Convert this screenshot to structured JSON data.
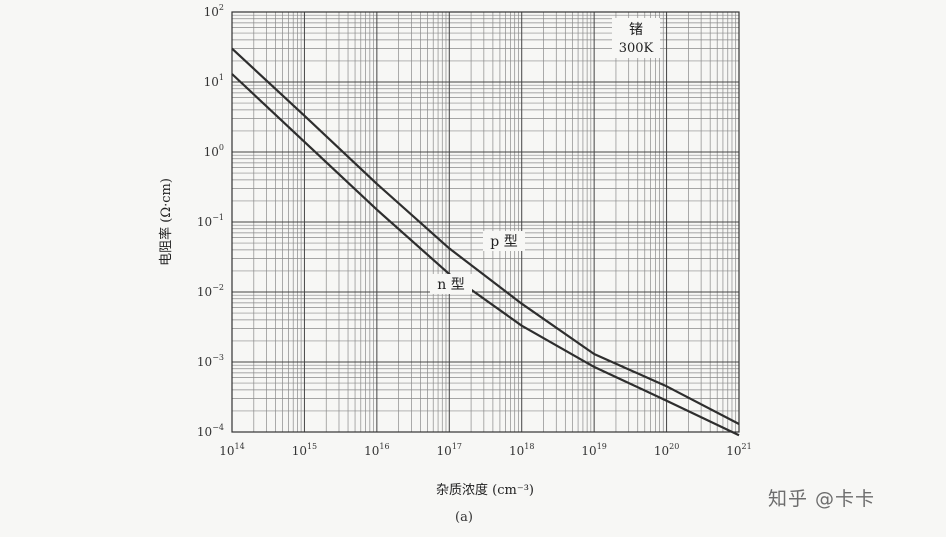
{
  "chart_data": {
    "type": "line",
    "title": "",
    "xlabel": "杂质浓度 (cm⁻³)",
    "ylabel": "电阻率 (Ω·cm)",
    "xscale": "log",
    "yscale": "log",
    "xlim": [
      100000000000000.0,
      1e+21
    ],
    "ylim": [
      0.0001,
      100
    ],
    "x_ticks": [
      "10^14",
      "10^15",
      "10^16",
      "10^17",
      "10^18",
      "10^19",
      "10^20",
      "10^21"
    ],
    "y_ticks": [
      "10^2",
      "10^1",
      "10^0",
      "10^-1",
      "10^-2",
      "10^-3",
      "10^-4"
    ],
    "grid": true,
    "series": [
      {
        "name": "p 型",
        "x": [
          100000000000000.0,
          1000000000000000.0,
          1e+16,
          1e+17,
          1e+18,
          1e+19,
          1e+20,
          1e+21
        ],
        "y": [
          30,
          3.3,
          0.35,
          0.042,
          0.0068,
          0.0013,
          0.00045,
          0.00013
        ]
      },
      {
        "name": "n 型",
        "x": [
          100000000000000.0,
          1000000000000000.0,
          1e+16,
          1e+17,
          1e+18,
          1e+19,
          1e+20,
          1e+21
        ],
        "y": [
          13,
          1.4,
          0.15,
          0.018,
          0.0033,
          0.00085,
          0.00028,
          9e-05
        ]
      }
    ],
    "annotations": {
      "material": "锗",
      "temperature": "300K"
    },
    "caption": "(a)"
  },
  "watermark": "知乎 @卡卡"
}
